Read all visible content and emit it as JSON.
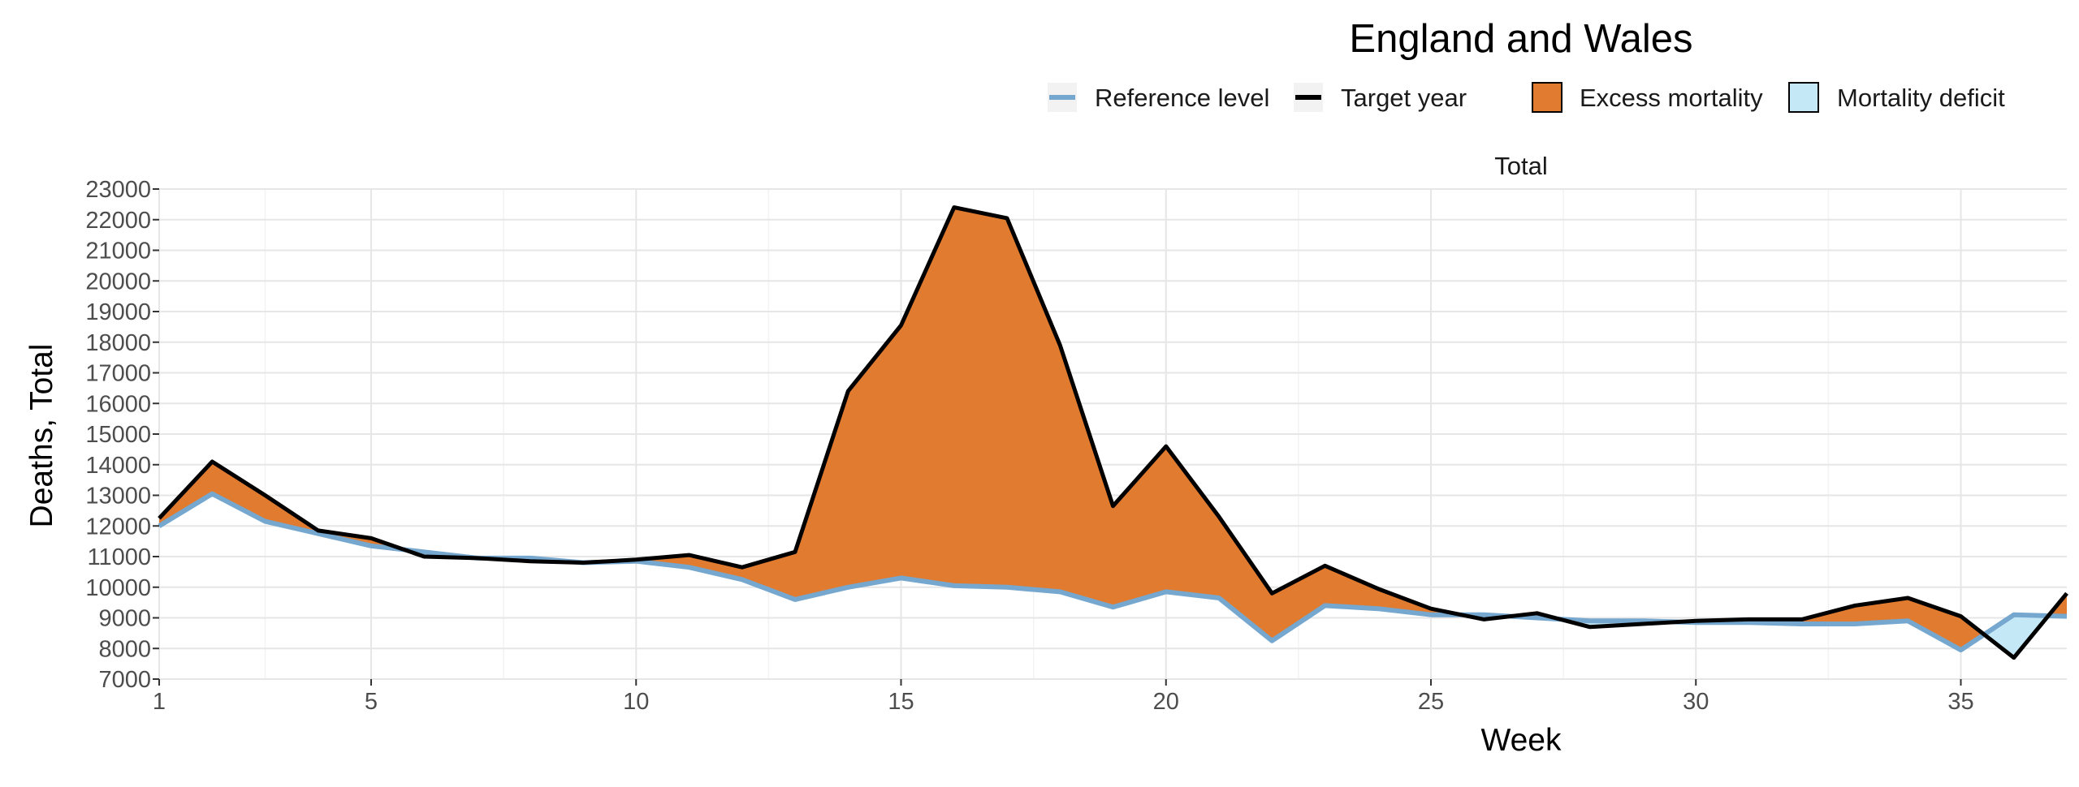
{
  "chart_data": {
    "type": "area",
    "title": "England and Wales",
    "panel_label": "Total",
    "xlabel": "Week",
    "ylabel": "Deaths, Total",
    "xlim": [
      1,
      37
    ],
    "ylim": [
      7000,
      23000
    ],
    "x_ticks": [
      1,
      5,
      10,
      15,
      20,
      25,
      30,
      35
    ],
    "y_ticks": [
      7000,
      8000,
      9000,
      10000,
      11000,
      12000,
      13000,
      14000,
      15000,
      16000,
      17000,
      18000,
      19000,
      20000,
      21000,
      22000,
      23000
    ],
    "grid": true,
    "legend_position": "top-right",
    "legend": [
      {
        "label": "Reference level",
        "kind": "line",
        "color": "#75a7cf"
      },
      {
        "label": "Target year",
        "kind": "line",
        "color": "#000000"
      },
      {
        "label": "Excess mortality",
        "kind": "fill",
        "color": "#e07b30"
      },
      {
        "label": "Mortality deficit",
        "kind": "fill",
        "color": "#c5e8f7"
      }
    ],
    "x": [
      1,
      2,
      3,
      4,
      5,
      6,
      7,
      8,
      9,
      10,
      11,
      12,
      13,
      14,
      15,
      16,
      17,
      18,
      19,
      20,
      21,
      22,
      23,
      24,
      25,
      26,
      27,
      28,
      29,
      30,
      31,
      32,
      33,
      34,
      35,
      36,
      37
    ],
    "series": [
      {
        "name": "Reference level",
        "color": "#75a7cf",
        "values": [
          12000,
          13050,
          12150,
          11750,
          11350,
          11150,
          10950,
          10950,
          10800,
          10850,
          10650,
          10250,
          9600,
          10000,
          10300,
          10050,
          10000,
          9850,
          9350,
          9850,
          9650,
          8250,
          9400,
          9300,
          9100,
          9100,
          9000,
          8900,
          8900,
          8850,
          8850,
          8800,
          8800,
          8900,
          7950,
          9100,
          9050
        ]
      },
      {
        "name": "Target year",
        "color": "#000000",
        "values": [
          12250,
          14100,
          13000,
          11850,
          11600,
          11000,
          10950,
          10850,
          10800,
          10900,
          11050,
          10650,
          11150,
          16400,
          18550,
          22400,
          22050,
          17900,
          12650,
          14600,
          12300,
          9800,
          10700,
          9950,
          9300,
          8950,
          9150,
          8700,
          8800,
          8900,
          8950,
          8950,
          9400,
          9650,
          9050,
          7700,
          9800
        ]
      }
    ]
  }
}
